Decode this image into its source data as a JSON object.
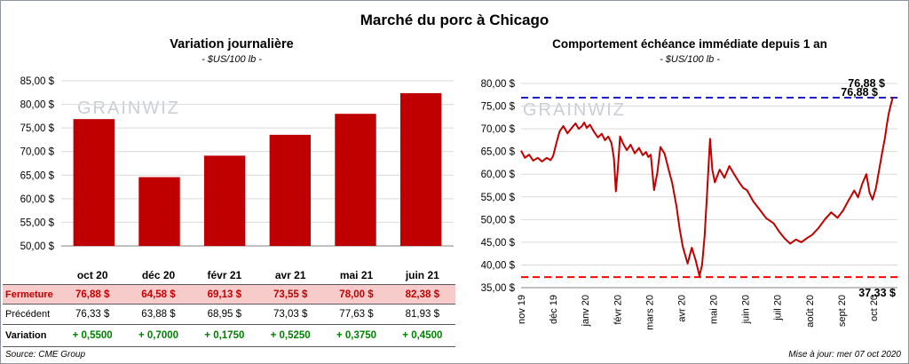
{
  "page": {
    "title": "Marché du porc à Chicago",
    "source": "Source: CME Group",
    "updated": "Mise à jour: mer 07 oct 2020",
    "watermark": "GRAINWIZ"
  },
  "colors": {
    "bar": "#c00000",
    "line": "#c00000",
    "grid": "#d9d9d9",
    "axis": "#808080",
    "high_ref": "#1f1fc8",
    "low_ref": "#ff0000",
    "close_row_bg": "#f8cbcb",
    "variation_text": "#008000",
    "watermark": "#c9ced4"
  },
  "chart_data": [
    {
      "id": "daily-variation",
      "type": "bar",
      "title": "Variation journalière",
      "subtitle": "- $US/100 lb -",
      "categories": [
        "oct 20",
        "déc 20",
        "févr 21",
        "avr 21",
        "mai 21",
        "juin 21"
      ],
      "values": [
        76.88,
        64.58,
        69.13,
        73.55,
        78.0,
        82.38
      ],
      "ylim": [
        50,
        85
      ],
      "ytick_values": [
        85,
        80,
        75,
        70,
        65,
        60,
        55,
        50
      ],
      "ytick_labels": [
        "85,00 $",
        "80,00 $",
        "75,00 $",
        "70,00 $",
        "65,00 $",
        "60,00 $",
        "55,00 $",
        "50,00 $"
      ],
      "table_rows": [
        {
          "label": "Fermeture",
          "values": [
            "76,88 $",
            "64,58 $",
            "69,13 $",
            "73,55 $",
            "78,00 $",
            "82,38 $"
          ]
        },
        {
          "label": "Précédent",
          "values": [
            "76,33 $",
            "63,88 $",
            "68,95 $",
            "73,03 $",
            "77,63 $",
            "81,93 $"
          ]
        },
        {
          "label": "Variation",
          "values": [
            "+ 0,5500",
            "+ 0,7000",
            "+ 0,1750",
            "+ 0,5250",
            "+ 0,3750",
            "+ 0,4500"
          ]
        }
      ]
    },
    {
      "id": "front-month-one-year",
      "type": "line",
      "title": "Comportement échéance immédiate depuis 1 an",
      "subtitle": "- $US/100 lb -",
      "x_labels": [
        "nov 19",
        "déc 19",
        "janv 20",
        "févr 20",
        "mars 20",
        "avr 20",
        "mai 20",
        "juin 20",
        "juil 20",
        "août 20",
        "sept 20",
        "oct 20"
      ],
      "xlim": [
        0,
        11.75
      ],
      "ylim": [
        35,
        80
      ],
      "ytick_values": [
        80,
        75,
        70,
        65,
        60,
        55,
        50,
        45,
        40,
        35
      ],
      "ytick_labels": [
        "80,00 $",
        "75,00 $",
        "70,00 $",
        "65,00 $",
        "60,00 $",
        "55,00 $",
        "50,00 $",
        "45,00 $",
        "40,00 $",
        "35,00 $"
      ],
      "ref_high": {
        "value": 76.88,
        "label": "76,88 $",
        "label2": "76,88 $"
      },
      "ref_low": {
        "value": 37.33,
        "label": "37,33 $"
      },
      "points": [
        [
          0,
          65.2
        ],
        [
          0.12,
          63.6
        ],
        [
          0.25,
          64.3
        ],
        [
          0.38,
          63
        ],
        [
          0.52,
          63.6
        ],
        [
          0.65,
          62.8
        ],
        [
          0.8,
          63.6
        ],
        [
          0.92,
          63.1
        ],
        [
          1,
          64
        ],
        [
          1.1,
          66.8
        ],
        [
          1.2,
          69.4
        ],
        [
          1.32,
          70.6
        ],
        [
          1.45,
          69
        ],
        [
          1.58,
          70.2
        ],
        [
          1.7,
          71.2
        ],
        [
          1.8,
          70
        ],
        [
          1.9,
          70.6
        ],
        [
          1.97,
          71.4
        ],
        [
          2.05,
          70.2
        ],
        [
          2.15,
          70.9
        ],
        [
          2.28,
          69.3
        ],
        [
          2.4,
          68.1
        ],
        [
          2.52,
          68.9
        ],
        [
          2.62,
          67.5
        ],
        [
          2.72,
          68.3
        ],
        [
          2.82,
          66.9
        ],
        [
          2.9,
          63.5
        ],
        [
          2.96,
          56.2
        ],
        [
          3.03,
          62
        ],
        [
          3.09,
          68.3
        ],
        [
          3.18,
          66.8
        ],
        [
          3.3,
          65.3
        ],
        [
          3.42,
          66.5
        ],
        [
          3.55,
          64.6
        ],
        [
          3.68,
          65.8
        ],
        [
          3.8,
          64.2
        ],
        [
          3.9,
          64.9
        ],
        [
          3.97,
          63.8
        ],
        [
          4.05,
          64.3
        ],
        [
          4.15,
          56.5
        ],
        [
          4.25,
          60.2
        ],
        [
          4.35,
          66
        ],
        [
          4.48,
          64.5
        ],
        [
          4.6,
          61.2
        ],
        [
          4.72,
          58
        ],
        [
          4.85,
          53
        ],
        [
          4.95,
          48
        ],
        [
          5.05,
          44
        ],
        [
          5.2,
          40.3
        ],
        [
          5.33,
          43.8
        ],
        [
          5.45,
          41
        ],
        [
          5.57,
          37.6
        ],
        [
          5.65,
          40
        ],
        [
          5.73,
          46.5
        ],
        [
          5.8,
          55
        ],
        [
          5.86,
          63
        ],
        [
          5.9,
          67.8
        ],
        [
          5.97,
          61
        ],
        [
          6.05,
          58.2
        ],
        [
          6.2,
          61
        ],
        [
          6.35,
          59.2
        ],
        [
          6.5,
          61.8
        ],
        [
          6.65,
          60
        ],
        [
          6.8,
          58.3
        ],
        [
          6.93,
          57
        ],
        [
          7.05,
          56.5
        ],
        [
          7.25,
          54
        ],
        [
          7.45,
          52.2
        ],
        [
          7.65,
          50.3
        ],
        [
          7.88,
          49.2
        ],
        [
          8.05,
          47.4
        ],
        [
          8.22,
          45.9
        ],
        [
          8.4,
          44.7
        ],
        [
          8.58,
          45.6
        ],
        [
          8.75,
          45
        ],
        [
          8.92,
          45.9
        ],
        [
          9.08,
          46.6
        ],
        [
          9.28,
          48.1
        ],
        [
          9.48,
          50
        ],
        [
          9.68,
          51.6
        ],
        [
          9.88,
          50.4
        ],
        [
          10.05,
          52
        ],
        [
          10.22,
          54.2
        ],
        [
          10.4,
          56.4
        ],
        [
          10.52,
          54.9
        ],
        [
          10.65,
          57.9
        ],
        [
          10.78,
          60
        ],
        [
          10.88,
          55.9
        ],
        [
          10.97,
          54.4
        ],
        [
          11.08,
          57
        ],
        [
          11.18,
          61
        ],
        [
          11.28,
          65
        ],
        [
          11.36,
          68
        ],
        [
          11.42,
          71
        ],
        [
          11.48,
          73.5
        ],
        [
          11.54,
          75.2
        ],
        [
          11.6,
          76.88
        ]
      ]
    }
  ]
}
